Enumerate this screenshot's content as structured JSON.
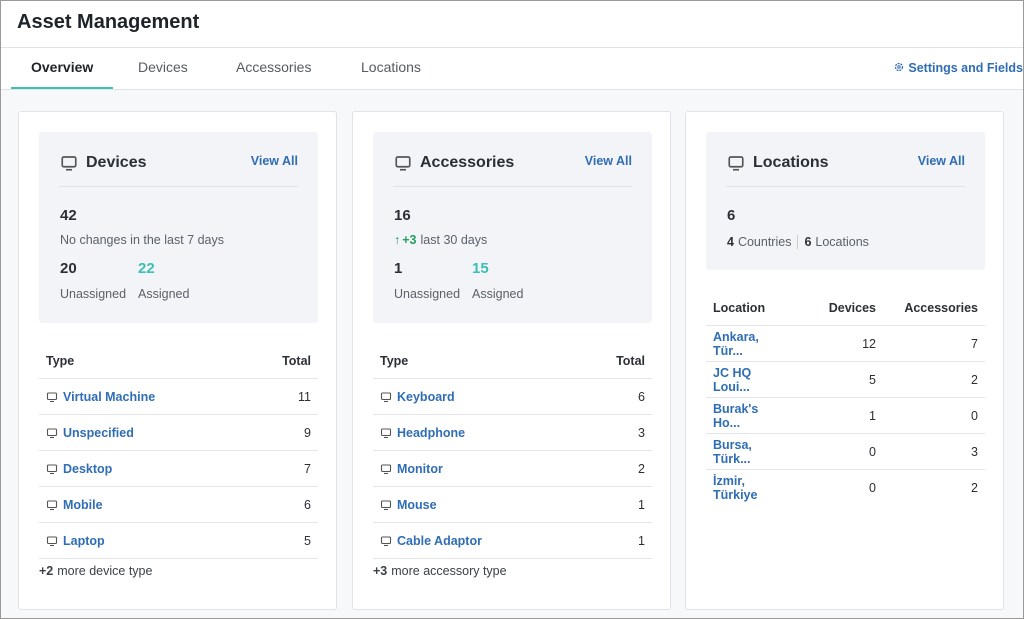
{
  "header": {
    "title": "Asset Management"
  },
  "tabs": [
    "Overview",
    "Devices",
    "Accessories",
    "Locations"
  ],
  "settings_link": "Settings and Fields",
  "cards": [
    {
      "title": "Devices",
      "view_all": "View All",
      "total": 42,
      "note": "No changes in the last 7 days",
      "stats": [
        {
          "value": 20,
          "label": "Unassigned"
        },
        {
          "value": 22,
          "label": "Assigned"
        }
      ],
      "table": {
        "header": [
          "Type",
          "Total"
        ],
        "rows": [
          [
            "Virtual Machine",
            11
          ],
          [
            "Unspecified",
            9
          ],
          [
            "Desktop",
            7
          ],
          [
            "Mobile",
            6
          ],
          [
            "Laptop",
            5
          ]
        ]
      },
      "more": {
        "count": "+2",
        "text": "more device type"
      }
    },
    {
      "title": "Accessories",
      "view_all": "View All",
      "total": 16,
      "change": "+3",
      "note": "last 30 days",
      "stats": [
        {
          "value": 1,
          "label": "Unassigned"
        },
        {
          "value": 15,
          "label": "Assigned"
        }
      ],
      "table": {
        "header": [
          "Type",
          "Total"
        ],
        "rows": [
          [
            "Keyboard",
            6
          ],
          [
            "Headphone",
            3
          ],
          [
            "Monitor",
            2
          ],
          [
            "Mouse",
            1
          ],
          [
            "Cable Adaptor",
            1
          ]
        ]
      },
      "more": {
        "count": "+3",
        "text": "more accessory type"
      }
    },
    {
      "title": "Locations",
      "view_all": "View All",
      "total": 6,
      "breakdown": [
        {
          "value": 4,
          "label": "Countries"
        },
        {
          "value": 6,
          "label": "Locations"
        }
      ],
      "table": {
        "header": [
          "Location",
          "Devices",
          "Accessories"
        ],
        "rows": [
          [
            "Ankara, Tür...",
            12,
            7
          ],
          [
            "JC HQ Loui...",
            5,
            2
          ],
          [
            "Burak's Ho...",
            1,
            0
          ],
          [
            "Bursa, Türk...",
            0,
            3
          ],
          [
            "İzmir, Türkiye",
            0,
            2
          ]
        ]
      }
    }
  ]
}
